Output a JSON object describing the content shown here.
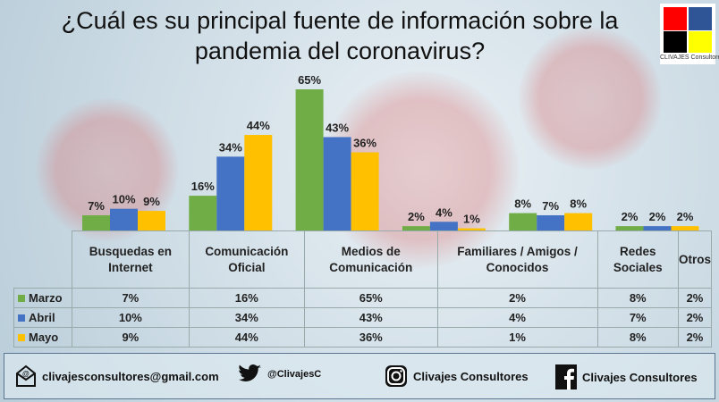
{
  "title": "¿Cuál es su principal fuente de información sobre la pandemia del coronavirus?",
  "logo": {
    "text": "CLIVAJES Consultores",
    "colors": [
      "#ff0000",
      "#2f5597",
      "#000000",
      "#ffff00"
    ]
  },
  "chart_data": {
    "type": "bar",
    "title": "¿Cuál es su principal fuente de información sobre la pandemia del coronavirus?",
    "categories": [
      "Busquedas en Internet",
      "Comunicación Oficial",
      "Medios de Comunicación",
      "Familiares / Amigos / Conocidos",
      "Redes Sociales",
      "Otros"
    ],
    "series": [
      {
        "name": "Marzo",
        "color": "#70ad47",
        "values": [
          7,
          16,
          65,
          2,
          8,
          2
        ],
        "labels": [
          "7%",
          "16%",
          "65%",
          "2%",
          "8%",
          "2%"
        ]
      },
      {
        "name": "Abril",
        "color": "#4472c4",
        "values": [
          10,
          34,
          43,
          4,
          7,
          2
        ],
        "labels": [
          "10%",
          "34%",
          "43%",
          "4%",
          "7%",
          "2%"
        ]
      },
      {
        "name": "Mayo",
        "color": "#ffc000",
        "values": [
          9,
          44,
          36,
          1,
          8,
          2
        ],
        "labels": [
          "9%",
          "44%",
          "36%",
          "1%",
          "8%",
          "2%"
        ]
      }
    ],
    "ylim": [
      0,
      70
    ],
    "grid": false,
    "legend": "data table"
  },
  "footer": {
    "email": "clivajesconsultores@gmail.com",
    "twitter": "@ClivajesC",
    "instagram": "Clivajes Consultores",
    "facebook": "Clivajes Consultores"
  }
}
